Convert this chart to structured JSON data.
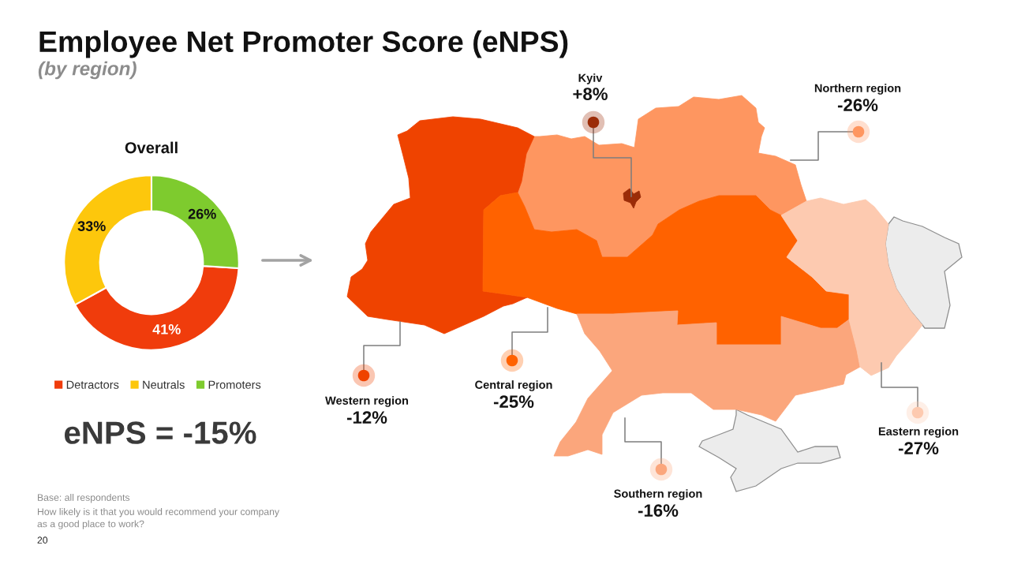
{
  "chart_data": [
    {
      "type": "donut",
      "title": "Overall",
      "categories": [
        "Detractors",
        "Neutrals",
        "Promoters"
      ],
      "values": [
        41,
        33,
        26
      ],
      "colors": [
        "#f03c0c",
        "#fdc70c",
        "#7ecb2e"
      ],
      "value_labels": [
        "41%",
        "33%",
        "26%"
      ],
      "legend": "bottom",
      "annotations": [
        "eNPS = -15%",
        "Base: all respondents",
        "How likely is it that you would recommend your company\nas a good place to work?",
        "20"
      ]
    },
    {
      "type": "other",
      "title": "Employee Net Promoter Score (eNPS)",
      "subtitle": "(by region)",
      "categories": [
        "Kyiv",
        "Northern region",
        "Western region",
        "Central region",
        "Southern region",
        "Eastern region"
      ],
      "values": [
        8,
        -26,
        -12,
        -25,
        -16,
        -27
      ],
      "value_labels": [
        "+8%",
        "-26%",
        "-12%",
        "-25%",
        "-16%",
        "-27%"
      ],
      "colors": [
        "#9b2c08",
        "#fe9660",
        "#ef4300",
        "#ff6200",
        "#fba67c",
        "#fdcab0"
      ]
    }
  ]
}
